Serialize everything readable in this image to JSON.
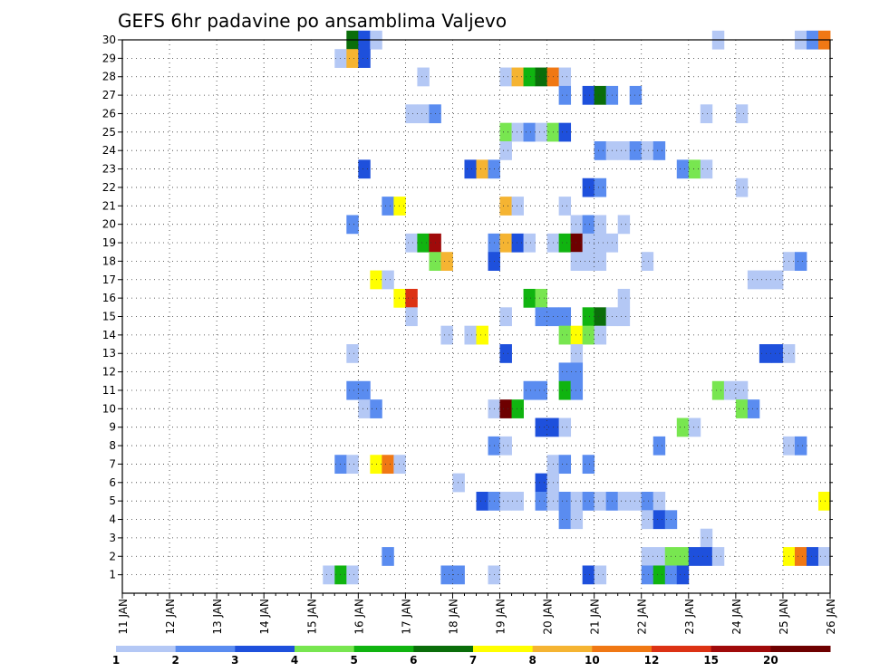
{
  "chart_data": {
    "type": "heatmap",
    "title": "GEFS 6hr padavine po ansamblima Valjevo",
    "x_tick_labels": [
      "11 JAN",
      "12 JAN",
      "13 JAN",
      "14 JAN",
      "15 JAN",
      "16 JAN",
      "17 JAN",
      "18 JAN",
      "19 JAN",
      "20 JAN",
      "21 JAN",
      "22 JAN",
      "23 JAN",
      "24 JAN",
      "25 JAN",
      "26 JAN"
    ],
    "y_tick_labels": [
      "1",
      "2",
      "3",
      "4",
      "5",
      "6",
      "7",
      "8",
      "9",
      "10",
      "11",
      "12",
      "13",
      "14",
      "15",
      "16",
      "17",
      "18",
      "19",
      "20",
      "21",
      "22",
      "23",
      "24",
      "25",
      "26",
      "27",
      "28",
      "29",
      "30"
    ],
    "x_unit": "6-hour step from 11 JAN 00Z",
    "xlim": [
      0,
      60
    ],
    "ylim": [
      0,
      30
    ],
    "grid": true,
    "legend": {
      "placement": "bottom",
      "colors": [
        "#b4c8f5",
        "#5a8cf0",
        "#1e50dc",
        "#78e650",
        "#10b410",
        "#0a6e0a",
        "#ffff00",
        "#f5b432",
        "#f07814",
        "#dc3214",
        "#a00a0a",
        "#6e0000"
      ],
      "tick_labels": [
        "1",
        "2",
        "3",
        "4",
        "5",
        "6",
        "7",
        "8",
        "10",
        "12",
        "15",
        "20"
      ]
    },
    "cells": [
      {
        "member": 30,
        "step": 19.5,
        "value": 6
      },
      {
        "member": 30,
        "step": 20.5,
        "value": 3
      },
      {
        "member": 30,
        "step": 21.5,
        "value": 1
      },
      {
        "member": 30,
        "step": 50.5,
        "value": 1
      },
      {
        "member": 30,
        "step": 57.5,
        "value": 1
      },
      {
        "member": 30,
        "step": 58.5,
        "value": 2
      },
      {
        "member": 30,
        "step": 59.5,
        "value": 10
      },
      {
        "member": 29,
        "step": 18.5,
        "value": 1
      },
      {
        "member": 29,
        "step": 19.5,
        "value": 8
      },
      {
        "member": 29,
        "step": 20.5,
        "value": 3
      },
      {
        "member": 28,
        "step": 25.5,
        "value": 1
      },
      {
        "member": 28,
        "step": 32.5,
        "value": 1
      },
      {
        "member": 28,
        "step": 33.5,
        "value": 8
      },
      {
        "member": 28,
        "step": 34.5,
        "value": 5
      },
      {
        "member": 28,
        "step": 35.5,
        "value": 6
      },
      {
        "member": 28,
        "step": 36.5,
        "value": 10
      },
      {
        "member": 28,
        "step": 37.5,
        "value": 1
      },
      {
        "member": 27,
        "step": 37.5,
        "value": 2
      },
      {
        "member": 27,
        "step": 39.5,
        "value": 3
      },
      {
        "member": 27,
        "step": 40.5,
        "value": 6
      },
      {
        "member": 27,
        "step": 41.5,
        "value": 2
      },
      {
        "member": 27,
        "step": 43.5,
        "value": 2
      },
      {
        "member": 26,
        "step": 24.5,
        "value": 1
      },
      {
        "member": 26,
        "step": 25.5,
        "value": 1
      },
      {
        "member": 26,
        "step": 26.5,
        "value": 2
      },
      {
        "member": 26,
        "step": 49.5,
        "value": 1
      },
      {
        "member": 26,
        "step": 52.5,
        "value": 1
      },
      {
        "member": 25,
        "step": 32.5,
        "value": 4
      },
      {
        "member": 25,
        "step": 33.5,
        "value": 1
      },
      {
        "member": 25,
        "step": 34.5,
        "value": 2
      },
      {
        "member": 25,
        "step": 35.5,
        "value": 1
      },
      {
        "member": 25,
        "step": 36.5,
        "value": 4
      },
      {
        "member": 25,
        "step": 37.5,
        "value": 3
      },
      {
        "member": 24,
        "step": 32.5,
        "value": 1
      },
      {
        "member": 24,
        "step": 40.5,
        "value": 2
      },
      {
        "member": 24,
        "step": 41.5,
        "value": 1
      },
      {
        "member": 24,
        "step": 42.5,
        "value": 1
      },
      {
        "member": 24,
        "step": 43.5,
        "value": 2
      },
      {
        "member": 24,
        "step": 44.5,
        "value": 1
      },
      {
        "member": 24,
        "step": 45.5,
        "value": 2
      },
      {
        "member": 23,
        "step": 20.5,
        "value": 3
      },
      {
        "member": 23,
        "step": 29.5,
        "value": 3
      },
      {
        "member": 23,
        "step": 30.5,
        "value": 8
      },
      {
        "member": 23,
        "step": 31.5,
        "value": 2
      },
      {
        "member": 23,
        "step": 47.5,
        "value": 2
      },
      {
        "member": 23,
        "step": 48.5,
        "value": 4
      },
      {
        "member": 23,
        "step": 49.5,
        "value": 1
      },
      {
        "member": 22,
        "step": 39.5,
        "value": 3
      },
      {
        "member": 22,
        "step": 40.5,
        "value": 2
      },
      {
        "member": 22,
        "step": 52.5,
        "value": 1
      },
      {
        "member": 21,
        "step": 22.5,
        "value": 2
      },
      {
        "member": 21,
        "step": 23.5,
        "value": 7
      },
      {
        "member": 21,
        "step": 32.5,
        "value": 8
      },
      {
        "member": 21,
        "step": 33.5,
        "value": 1
      },
      {
        "member": 21,
        "step": 37.5,
        "value": 1
      },
      {
        "member": 20,
        "step": 19.5,
        "value": 2
      },
      {
        "member": 20,
        "step": 38.5,
        "value": 1
      },
      {
        "member": 20,
        "step": 39.5,
        "value": 2
      },
      {
        "member": 20,
        "step": 40.5,
        "value": 1
      },
      {
        "member": 20,
        "step": 42.5,
        "value": 1
      },
      {
        "member": 19,
        "step": 24.5,
        "value": 1
      },
      {
        "member": 19,
        "step": 25.5,
        "value": 5
      },
      {
        "member": 19,
        "step": 26.5,
        "value": 15
      },
      {
        "member": 19,
        "step": 31.5,
        "value": 2
      },
      {
        "member": 19,
        "step": 32.5,
        "value": 8
      },
      {
        "member": 19,
        "step": 33.5,
        "value": 3
      },
      {
        "member": 19,
        "step": 34.5,
        "value": 1
      },
      {
        "member": 19,
        "step": 36.5,
        "value": 1
      },
      {
        "member": 19,
        "step": 37.5,
        "value": 5
      },
      {
        "member": 19,
        "step": 38.5,
        "value": 20
      },
      {
        "member": 19,
        "step": 39.5,
        "value": 1
      },
      {
        "member": 19,
        "step": 40.5,
        "value": 1
      },
      {
        "member": 19,
        "step": 41.5,
        "value": 1
      },
      {
        "member": 18,
        "step": 26.5,
        "value": 4
      },
      {
        "member": 18,
        "step": 27.5,
        "value": 8
      },
      {
        "member": 18,
        "step": 31.5,
        "value": 3
      },
      {
        "member": 18,
        "step": 38.5,
        "value": 1
      },
      {
        "member": 18,
        "step": 39.5,
        "value": 1
      },
      {
        "member": 18,
        "step": 40.5,
        "value": 1
      },
      {
        "member": 18,
        "step": 44.5,
        "value": 1
      },
      {
        "member": 18,
        "step": 56.5,
        "value": 1
      },
      {
        "member": 18,
        "step": 57.5,
        "value": 2
      },
      {
        "member": 17,
        "step": 21.5,
        "value": 7
      },
      {
        "member": 17,
        "step": 22.5,
        "value": 1
      },
      {
        "member": 17,
        "step": 53.5,
        "value": 1
      },
      {
        "member": 17,
        "step": 54.5,
        "value": 1
      },
      {
        "member": 17,
        "step": 55.5,
        "value": 1
      },
      {
        "member": 16,
        "step": 23.5,
        "value": 7
      },
      {
        "member": 16,
        "step": 24.5,
        "value": 12
      },
      {
        "member": 16,
        "step": 34.5,
        "value": 5
      },
      {
        "member": 16,
        "step": 35.5,
        "value": 4
      },
      {
        "member": 16,
        "step": 42.5,
        "value": 1
      },
      {
        "member": 15,
        "step": 24.5,
        "value": 1
      },
      {
        "member": 15,
        "step": 32.5,
        "value": 1
      },
      {
        "member": 15,
        "step": 35.5,
        "value": 2
      },
      {
        "member": 15,
        "step": 36.5,
        "value": 2
      },
      {
        "member": 15,
        "step": 37.5,
        "value": 2
      },
      {
        "member": 15,
        "step": 39.5,
        "value": 5
      },
      {
        "member": 15,
        "step": 40.5,
        "value": 6
      },
      {
        "member": 15,
        "step": 41.5,
        "value": 1
      },
      {
        "member": 15,
        "step": 42.5,
        "value": 1
      },
      {
        "member": 14,
        "step": 27.5,
        "value": 1
      },
      {
        "member": 14,
        "step": 29.5,
        "value": 1
      },
      {
        "member": 14,
        "step": 30.5,
        "value": 7
      },
      {
        "member": 14,
        "step": 37.5,
        "value": 4
      },
      {
        "member": 14,
        "step": 38.5,
        "value": 7
      },
      {
        "member": 14,
        "step": 39.5,
        "value": 4
      },
      {
        "member": 14,
        "step": 40.5,
        "value": 1
      },
      {
        "member": 13,
        "step": 19.5,
        "value": 1
      },
      {
        "member": 13,
        "step": 32.5,
        "value": 3
      },
      {
        "member": 13,
        "step": 38.5,
        "value": 1
      },
      {
        "member": 13,
        "step": 54.5,
        "value": 3
      },
      {
        "member": 13,
        "step": 55.5,
        "value": 3
      },
      {
        "member": 13,
        "step": 56.5,
        "value": 1
      },
      {
        "member": 12,
        "step": 37.5,
        "value": 2
      },
      {
        "member": 12,
        "step": 38.5,
        "value": 2
      },
      {
        "member": 11,
        "step": 19.5,
        "value": 2
      },
      {
        "member": 11,
        "step": 20.5,
        "value": 2
      },
      {
        "member": 11,
        "step": 34.5,
        "value": 2
      },
      {
        "member": 11,
        "step": 35.5,
        "value": 2
      },
      {
        "member": 11,
        "step": 37.5,
        "value": 5
      },
      {
        "member": 11,
        "step": 38.5,
        "value": 2
      },
      {
        "member": 11,
        "step": 50.5,
        "value": 4
      },
      {
        "member": 11,
        "step": 51.5,
        "value": 1
      },
      {
        "member": 11,
        "step": 52.5,
        "value": 1
      },
      {
        "member": 10,
        "step": 20.5,
        "value": 1
      },
      {
        "member": 10,
        "step": 21.5,
        "value": 2
      },
      {
        "member": 10,
        "step": 31.5,
        "value": 1
      },
      {
        "member": 10,
        "step": 32.5,
        "value": 20
      },
      {
        "member": 10,
        "step": 33.5,
        "value": 5
      },
      {
        "member": 10,
        "step": 52.5,
        "value": 4
      },
      {
        "member": 10,
        "step": 53.5,
        "value": 2
      },
      {
        "member": 9,
        "step": 35.5,
        "value": 3
      },
      {
        "member": 9,
        "step": 36.5,
        "value": 3
      },
      {
        "member": 9,
        "step": 37.5,
        "value": 1
      },
      {
        "member": 9,
        "step": 47.5,
        "value": 4
      },
      {
        "member": 9,
        "step": 48.5,
        "value": 1
      },
      {
        "member": 8,
        "step": 31.5,
        "value": 2
      },
      {
        "member": 8,
        "step": 32.5,
        "value": 1
      },
      {
        "member": 8,
        "step": 45.5,
        "value": 2
      },
      {
        "member": 8,
        "step": 56.5,
        "value": 1
      },
      {
        "member": 8,
        "step": 57.5,
        "value": 2
      },
      {
        "member": 7,
        "step": 18.5,
        "value": 2
      },
      {
        "member": 7,
        "step": 19.5,
        "value": 1
      },
      {
        "member": 7,
        "step": 21.5,
        "value": 7
      },
      {
        "member": 7,
        "step": 22.5,
        "value": 10
      },
      {
        "member": 7,
        "step": 23.5,
        "value": 1
      },
      {
        "member": 7,
        "step": 36.5,
        "value": 1
      },
      {
        "member": 7,
        "step": 37.5,
        "value": 2
      },
      {
        "member": 7,
        "step": 39.5,
        "value": 2
      },
      {
        "member": 6,
        "step": 28.5,
        "value": 1
      },
      {
        "member": 6,
        "step": 35.5,
        "value": 3
      },
      {
        "member": 6,
        "step": 36.5,
        "value": 1
      },
      {
        "member": 5,
        "step": 30.5,
        "value": 3
      },
      {
        "member": 5,
        "step": 31.5,
        "value": 2
      },
      {
        "member": 5,
        "step": 32.5,
        "value": 1
      },
      {
        "member": 5,
        "step": 33.5,
        "value": 1
      },
      {
        "member": 5,
        "step": 35.5,
        "value": 2
      },
      {
        "member": 5,
        "step": 36.5,
        "value": 1
      },
      {
        "member": 5,
        "step": 37.5,
        "value": 2
      },
      {
        "member": 5,
        "step": 38.5,
        "value": 1
      },
      {
        "member": 5,
        "step": 39.5,
        "value": 2
      },
      {
        "member": 5,
        "step": 40.5,
        "value": 1
      },
      {
        "member": 5,
        "step": 41.5,
        "value": 2
      },
      {
        "member": 5,
        "step": 42.5,
        "value": 1
      },
      {
        "member": 5,
        "step": 43.5,
        "value": 1
      },
      {
        "member": 5,
        "step": 44.5,
        "value": 2
      },
      {
        "member": 5,
        "step": 45.5,
        "value": 1
      },
      {
        "member": 5,
        "step": 59.5,
        "value": 7
      },
      {
        "member": 4,
        "step": 37.5,
        "value": 2
      },
      {
        "member": 4,
        "step": 38.5,
        "value": 1
      },
      {
        "member": 4,
        "step": 44.5,
        "value": 1
      },
      {
        "member": 4,
        "step": 45.5,
        "value": 3
      },
      {
        "member": 4,
        "step": 46.5,
        "value": 2
      },
      {
        "member": 3,
        "step": 49.5,
        "value": 1
      },
      {
        "member": 2,
        "step": 22.5,
        "value": 2
      },
      {
        "member": 2,
        "step": 44.5,
        "value": 1
      },
      {
        "member": 2,
        "step": 45.5,
        "value": 1
      },
      {
        "member": 2,
        "step": 46.5,
        "value": 4
      },
      {
        "member": 2,
        "step": 47.5,
        "value": 4
      },
      {
        "member": 2,
        "step": 48.5,
        "value": 3
      },
      {
        "member": 2,
        "step": 49.5,
        "value": 3
      },
      {
        "member": 2,
        "step": 50.5,
        "value": 1
      },
      {
        "member": 2,
        "step": 56.5,
        "value": 7
      },
      {
        "member": 2,
        "step": 57.5,
        "value": 10
      },
      {
        "member": 2,
        "step": 58.5,
        "value": 3
      },
      {
        "member": 2,
        "step": 59.5,
        "value": 1
      },
      {
        "member": 1,
        "step": 17.5,
        "value": 1
      },
      {
        "member": 1,
        "step": 18.5,
        "value": 5
      },
      {
        "member": 1,
        "step": 19.5,
        "value": 1
      },
      {
        "member": 1,
        "step": 27.5,
        "value": 2
      },
      {
        "member": 1,
        "step": 28.5,
        "value": 2
      },
      {
        "member": 1,
        "step": 31.5,
        "value": 1
      },
      {
        "member": 1,
        "step": 39.5,
        "value": 3
      },
      {
        "member": 1,
        "step": 40.5,
        "value": 1
      },
      {
        "member": 1,
        "step": 44.5,
        "value": 2
      },
      {
        "member": 1,
        "step": 45.5,
        "value": 5
      },
      {
        "member": 1,
        "step": 46.5,
        "value": 2
      },
      {
        "member": 1,
        "step": 47.5,
        "value": 3
      }
    ]
  }
}
